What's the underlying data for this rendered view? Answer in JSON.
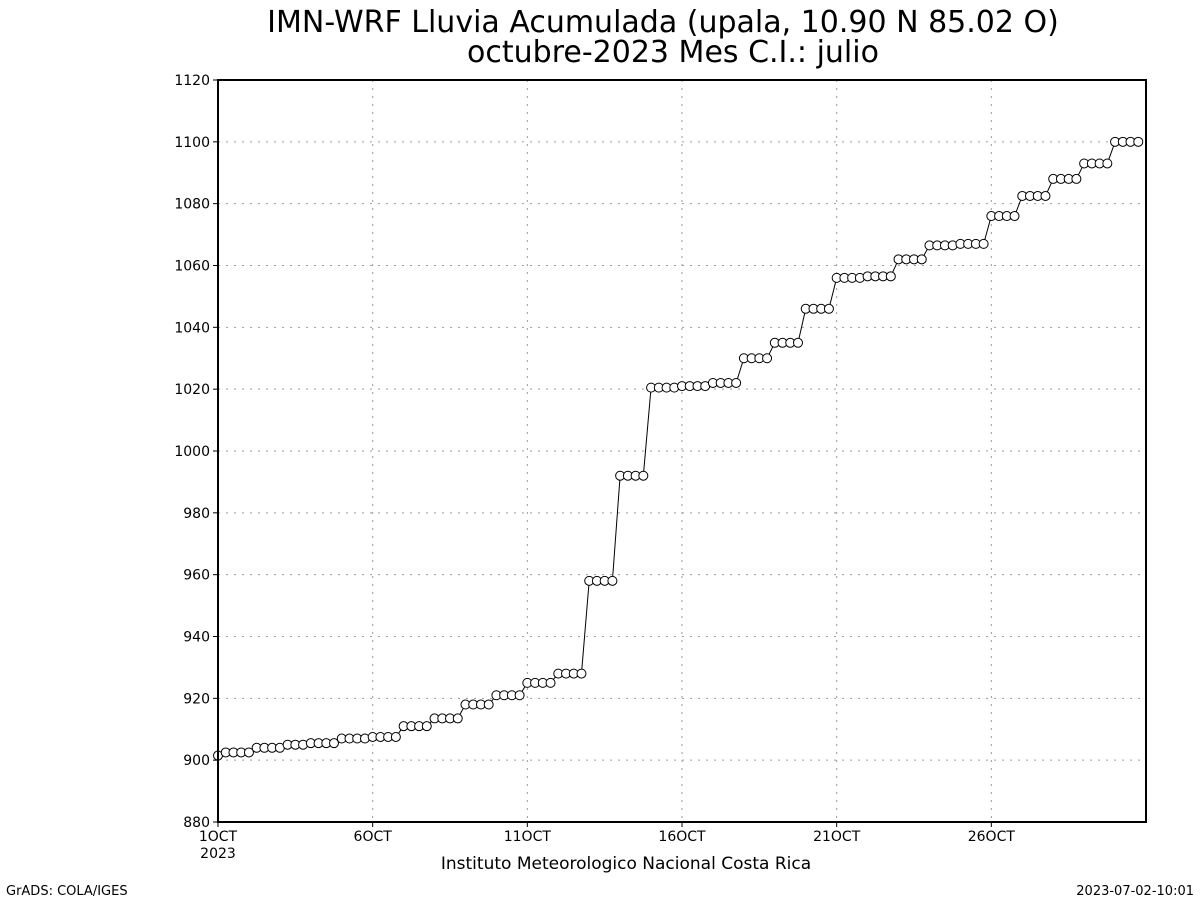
{
  "chart_data": {
    "type": "line",
    "title": "IMN-WRF  Lluvia Acumulada  (upala, 10.90  N 85.02  O)",
    "subtitle": "octubre-2023 Mes C.I.: julio",
    "xlabel": "Instituto Meteorologico Nacional Costa Rica",
    "ylabel": "",
    "ylim": [
      880,
      1120
    ],
    "yticks": [
      880,
      900,
      920,
      940,
      960,
      980,
      1000,
      1020,
      1040,
      1060,
      1080,
      1100,
      1120
    ],
    "x_unit": "day",
    "xlim": [
      1,
      31
    ],
    "x_step": 0.25,
    "xticks": [
      {
        "x": 1,
        "label": "1OCT",
        "sublabel": "2023"
      },
      {
        "x": 6,
        "label": "6OCT"
      },
      {
        "x": 11,
        "label": "11OCT"
      },
      {
        "x": 16,
        "label": "16OCT"
      },
      {
        "x": 21,
        "label": "21OCT"
      },
      {
        "x": 26,
        "label": "26OCT"
      }
    ],
    "grid": true,
    "marker": "open-circle",
    "series": [
      {
        "values": [
          901.5,
          902.5,
          902.5,
          902.5,
          902.5,
          904,
          904,
          904,
          904,
          905,
          905,
          905,
          905.5,
          905.5,
          905.5,
          905.5,
          907,
          907,
          907,
          907,
          907.5,
          907.5,
          907.5,
          907.5,
          911,
          911,
          911,
          911,
          913.5,
          913.5,
          913.5,
          913.5,
          918,
          918,
          918,
          918,
          921,
          921,
          921,
          921,
          925,
          925,
          925,
          925,
          928,
          928,
          928,
          928,
          958,
          958,
          958,
          958,
          992,
          992,
          992,
          992,
          1020.5,
          1020.5,
          1020.5,
          1020.5,
          1021,
          1021,
          1021,
          1021,
          1022,
          1022,
          1022,
          1022,
          1030,
          1030,
          1030,
          1030,
          1035,
          1035,
          1035,
          1035,
          1046,
          1046,
          1046,
          1046,
          1056,
          1056,
          1056,
          1056,
          1056.5,
          1056.5,
          1056.5,
          1056.5,
          1062,
          1062,
          1062,
          1062,
          1066.5,
          1066.5,
          1066.5,
          1066.5,
          1067,
          1067,
          1067,
          1067,
          1076,
          1076,
          1076,
          1076,
          1082.5,
          1082.5,
          1082.5,
          1082.5,
          1088,
          1088,
          1088,
          1088,
          1093,
          1093,
          1093,
          1093,
          1100,
          1100,
          1100,
          1100
        ]
      }
    ]
  },
  "footer": {
    "left": "GrADS: COLA/IGES",
    "right": "2023-07-02-10:01"
  }
}
